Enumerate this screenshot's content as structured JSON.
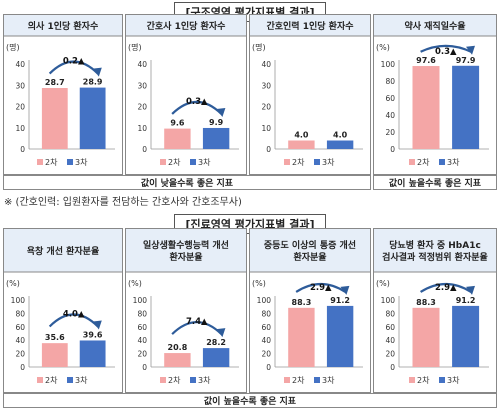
{
  "sections": [
    {
      "title": "[구조영역 평가지표별 결과]",
      "footers": [
        "값이 낮을수록 좋은 지표",
        "값이 높을수록 좋은 지표"
      ]
    },
    {
      "title": "[진료영역 평가지표별 결과]",
      "footers": [
        "값이 높을수록 좋은 지표"
      ]
    }
  ],
  "note": "※ (간호인력: 입원환자를 전담하는 간호사와 간호조무사)",
  "colors": {
    "round2": "#f4a6a6",
    "round3": "#4472c4",
    "header_bg": "#e6eef8",
    "arrow": "#2e5c9a"
  },
  "chart_data": [
    {
      "type": "bar",
      "title": "의사 1인당 환자수",
      "unit": "(명)",
      "yticks": [
        "40",
        "30",
        "20",
        "10",
        "0"
      ],
      "ylim": [
        0,
        40
      ],
      "categories": [
        "2차",
        "3차"
      ],
      "values": [
        28.7,
        28.9
      ],
      "labels": [
        "28.7",
        "28.9"
      ],
      "change": "0.2▲"
    },
    {
      "type": "bar",
      "title": "간호사 1인당 환자수",
      "unit": "(명)",
      "yticks": [
        "40",
        "30",
        "20",
        "10",
        "0"
      ],
      "ylim": [
        0,
        40
      ],
      "categories": [
        "2차",
        "3차"
      ],
      "values": [
        9.6,
        9.9
      ],
      "labels": [
        "9.6",
        "9.9"
      ],
      "change": "0.3▲"
    },
    {
      "type": "bar",
      "title": "간호인력 1인당 환자수",
      "unit": "(명)",
      "yticks": [
        "40",
        "30",
        "20",
        "10",
        "0"
      ],
      "ylim": [
        0,
        40
      ],
      "categories": [
        "2차",
        "3차"
      ],
      "values": [
        4.0,
        4.0
      ],
      "labels": [
        "4.0",
        "4.0"
      ],
      "change": ""
    },
    {
      "type": "bar",
      "title": "약사 재직일수율",
      "unit": "(%)",
      "yticks": [
        "100",
        "80",
        "60",
        "40",
        "20",
        "0"
      ],
      "ylim": [
        0,
        100
      ],
      "categories": [
        "2차",
        "3차"
      ],
      "values": [
        97.6,
        97.9
      ],
      "labels": [
        "97.6",
        "97.9"
      ],
      "change": "0.3▲"
    },
    {
      "type": "bar",
      "title": "욕창 개선 환자분율",
      "unit": "(%)",
      "yticks": [
        "100",
        "80",
        "60",
        "40",
        "20",
        "0"
      ],
      "ylim": [
        0,
        100
      ],
      "categories": [
        "2차",
        "3차"
      ],
      "values": [
        35.6,
        39.6
      ],
      "labels": [
        "35.6",
        "39.6"
      ],
      "change": "4.0▲"
    },
    {
      "type": "bar",
      "title": "일상생활수행능력 개선 환자분율",
      "unit": "(%)",
      "yticks": [
        "100",
        "80",
        "60",
        "40",
        "20",
        "0"
      ],
      "ylim": [
        0,
        100
      ],
      "categories": [
        "2차",
        "3차"
      ],
      "values": [
        20.8,
        28.2
      ],
      "labels": [
        "20.8",
        "28.2"
      ],
      "change": "7.4▲"
    },
    {
      "type": "bar",
      "title": "중등도 이상의 통증 개선 환자분율",
      "unit": "(%)",
      "yticks": [
        "100",
        "80",
        "60",
        "40",
        "20",
        "0"
      ],
      "ylim": [
        0,
        100
      ],
      "categories": [
        "2차",
        "3차"
      ],
      "values": [
        88.3,
        91.2
      ],
      "labels": [
        "88.3",
        "91.2"
      ],
      "change": "2.9▲"
    },
    {
      "type": "bar",
      "title": "당뇨병 환자 중 HbA1c 검사결과 적정범위 환자분율",
      "unit": "(%)",
      "yticks": [
        "100",
        "80",
        "60",
        "40",
        "20",
        "0"
      ],
      "ylim": [
        0,
        100
      ],
      "categories": [
        "2차",
        "3차"
      ],
      "values": [
        88.3,
        91.2
      ],
      "labels": [
        "88.3",
        "91.2"
      ],
      "change": "2.9▲"
    }
  ]
}
